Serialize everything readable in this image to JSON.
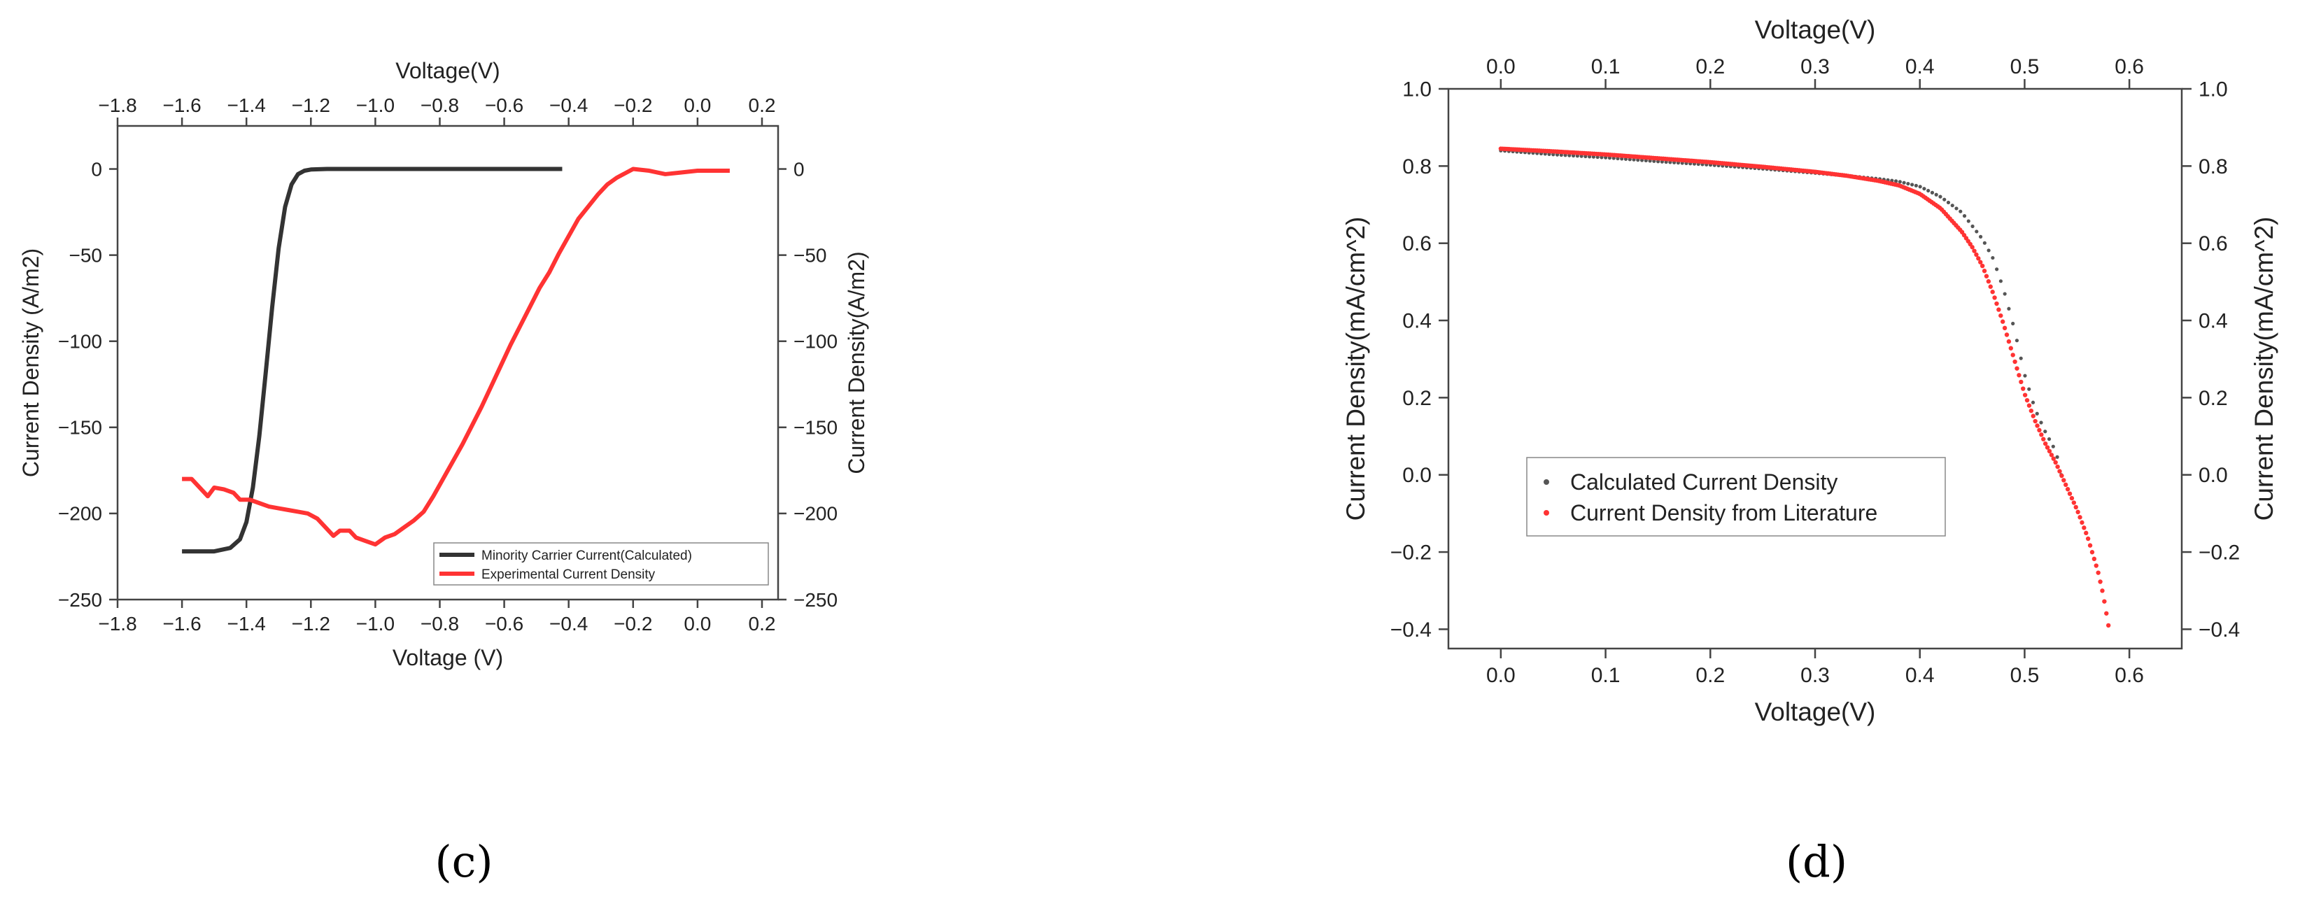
{
  "chart_data": [
    {
      "type": "line",
      "panel_label": "(c)",
      "xlabel": "Voltage (V)",
      "xlabel_top": "Voltage(V)",
      "ylabel": "Current Density (A/m2)",
      "ylabel_right": "Current Density(A/m2)",
      "xlim": [
        -1.8,
        0.25
      ],
      "ylim": [
        -250,
        25
      ],
      "ylim_right": [
        -250,
        25
      ],
      "x_ticks": [
        "-1.8",
        "-1.6",
        "-1.4",
        "-1.2",
        "-1.0",
        "-0.8",
        "-0.6",
        "-0.4",
        "-0.2",
        "0.0",
        "0.2"
      ],
      "y_ticks": [
        "0",
        "-50",
        "-100",
        "-150",
        "-200",
        "-250"
      ],
      "grid": false,
      "legend_position": "bottom-right",
      "series": [
        {
          "name": "Minority Carrier Current(Calculated)",
          "color": "#333333",
          "x": [
            -1.6,
            -1.5,
            -1.45,
            -1.42,
            -1.4,
            -1.38,
            -1.36,
            -1.34,
            -1.32,
            -1.3,
            -1.28,
            -1.26,
            -1.24,
            -1.22,
            -1.2,
            -1.15,
            -1.0,
            -0.8,
            -0.6,
            -0.42
          ],
          "y": [
            -222,
            -222,
            -220,
            -215,
            -205,
            -185,
            -155,
            -118,
            -80,
            -46,
            -22,
            -9,
            -3,
            -1,
            -0.3,
            0,
            0,
            0,
            0,
            0
          ]
        },
        {
          "name": "Experimental Current Density",
          "color": "#ff3333",
          "x": [
            -1.6,
            -1.57,
            -1.54,
            -1.52,
            -1.5,
            -1.47,
            -1.44,
            -1.42,
            -1.39,
            -1.36,
            -1.33,
            -1.3,
            -1.27,
            -1.24,
            -1.21,
            -1.18,
            -1.15,
            -1.13,
            -1.11,
            -1.08,
            -1.06,
            -1.03,
            -1.0,
            -0.97,
            -0.94,
            -0.91,
            -0.88,
            -0.85,
            -0.82,
            -0.79,
            -0.76,
            -0.73,
            -0.7,
            -0.67,
            -0.64,
            -0.61,
            -0.58,
            -0.55,
            -0.52,
            -0.49,
            -0.46,
            -0.43,
            -0.4,
            -0.37,
            -0.34,
            -0.31,
            -0.28,
            -0.25,
            -0.22,
            -0.2,
            -0.15,
            -0.1,
            -0.05,
            0.0,
            0.05,
            0.1
          ],
          "y": [
            -180,
            -180,
            -186,
            -190,
            -185,
            -186,
            -188,
            -192,
            -192,
            -194,
            -196,
            -197,
            -198,
            -199,
            -200,
            -203,
            -209,
            -213,
            -210,
            -210,
            -214,
            -216,
            -218,
            -214,
            -212,
            -208,
            -204,
            -199,
            -190,
            -180,
            -170,
            -160,
            -149,
            -138,
            -126,
            -114,
            -102,
            -91,
            -80,
            -69,
            -60,
            -49,
            -39,
            -29,
            -22,
            -15,
            -9,
            -5,
            -2,
            0,
            -1,
            -3,
            -2,
            -1,
            -1,
            -1
          ]
        }
      ]
    },
    {
      "type": "scatter",
      "panel_label": "(d)",
      "xlabel": "Voltage(V)",
      "xlabel_top": "Voltage(V)",
      "ylabel": "Current Density(mA/cm^2)",
      "ylabel_right": "Current Density(mA/cm^2)",
      "xlim": [
        -0.05,
        0.65
      ],
      "ylim": [
        -0.45,
        1.0
      ],
      "ylim_right": [
        -0.45,
        1.0
      ],
      "x_ticks": [
        "0.0",
        "0.1",
        "0.2",
        "0.3",
        "0.4",
        "0.5",
        "0.6"
      ],
      "y_ticks": [
        "1.0",
        "0.8",
        "0.6",
        "0.4",
        "0.2",
        "0.0",
        "-0.2",
        "-0.4"
      ],
      "grid": false,
      "legend_position": "lower-left",
      "series": [
        {
          "name": "Calculated Current Density",
          "color": "#555555",
          "x": [
            0.0,
            0.05,
            0.1,
            0.15,
            0.2,
            0.25,
            0.3,
            0.33,
            0.36,
            0.38,
            0.4,
            0.42,
            0.44,
            0.46,
            0.47,
            0.48,
            0.49,
            0.5,
            0.51,
            0.52,
            0.53,
            0.535
          ],
          "y": [
            0.84,
            0.83,
            0.822,
            0.812,
            0.803,
            0.793,
            0.782,
            0.775,
            0.767,
            0.76,
            0.747,
            0.72,
            0.68,
            0.61,
            0.56,
            0.48,
            0.38,
            0.26,
            0.17,
            0.11,
            0.06,
            0.0
          ]
        },
        {
          "name": "Current Density from Literature",
          "color": "#ff3333",
          "x": [
            0.0,
            0.05,
            0.1,
            0.15,
            0.2,
            0.25,
            0.3,
            0.33,
            0.36,
            0.38,
            0.4,
            0.42,
            0.44,
            0.45,
            0.46,
            0.47,
            0.48,
            0.49,
            0.5,
            0.51,
            0.52,
            0.53,
            0.54,
            0.55,
            0.56,
            0.57,
            0.575,
            0.58
          ],
          "y": [
            0.845,
            0.838,
            0.83,
            0.82,
            0.81,
            0.798,
            0.785,
            0.775,
            0.762,
            0.75,
            0.728,
            0.69,
            0.63,
            0.59,
            0.54,
            0.47,
            0.39,
            0.3,
            0.21,
            0.14,
            0.08,
            0.03,
            -0.03,
            -0.09,
            -0.16,
            -0.25,
            -0.31,
            -0.39
          ]
        }
      ]
    }
  ]
}
